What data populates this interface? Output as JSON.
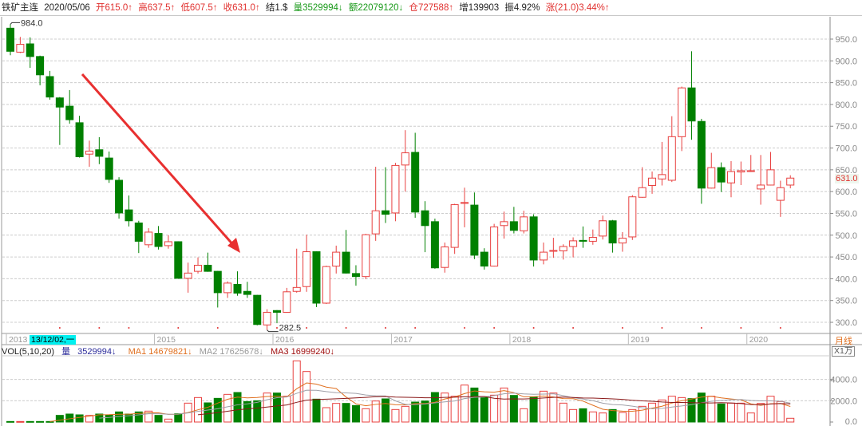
{
  "header": {
    "symbol": "铁矿主连",
    "date": "2020/05/06",
    "open": "开615.0↑",
    "high": "高637.5↑",
    "low": "低607.5↑",
    "close": "收631.0↑",
    "settle": "结1.$",
    "volume": "量3529994↓",
    "amount": "额22079120↓",
    "open_interest": "仓727588↑",
    "oi_change": "增139903",
    "amplitude": "振4.92%",
    "change": "涨(21.0)3.44%↑"
  },
  "volume_header": {
    "indicator": "VOL(5,10,20)",
    "vol_label": "量",
    "vol_value": "3529994↓",
    "ma1": "MA1 14679821↓",
    "ma2": "MA2 17625678↓",
    "ma3": "MA3 16999240↓"
  },
  "cursor_date": "13/12/02,一",
  "period_label": "月线",
  "volume_unit": "X1万",
  "last_price_label": "631.0",
  "colors": {
    "up": "#e8403f",
    "down": "#008000",
    "arrow": "#e83030",
    "ma1": "#e07020",
    "ma2": "#a0a0a8",
    "ma3": "#8b1a1a"
  },
  "chart_data": {
    "type": "candlestick",
    "period": "monthly",
    "first_month": "2013-10",
    "price_axis": {
      "ylim": [
        280,
        990
      ],
      "ticks": [
        "300.0",
        "350.0",
        "400.0",
        "450.0",
        "500.0",
        "550.0",
        "600.0",
        "650.0",
        "700.0",
        "750.0",
        "800.0",
        "850.0",
        "900.0",
        "950.0"
      ],
      "grid": true
    },
    "volume_axis": {
      "unit": "万",
      "ticks": [
        "0.0",
        "2000.0",
        "4000.0"
      ],
      "grid": true
    },
    "year_labels": [
      {
        "label": "2013",
        "index": 0
      },
      {
        "label": "2015",
        "index": 15
      },
      {
        "label": "2016",
        "index": 27
      },
      {
        "label": "2017",
        "index": 39
      },
      {
        "label": "2018",
        "index": 51
      },
      {
        "label": "2019",
        "index": 63
      },
      {
        "label": "2020",
        "index": 75
      }
    ],
    "annotations": {
      "high": "984.0",
      "low": "282.5",
      "high_index": 0,
      "low_index": 26
    },
    "ohlc": [
      [
        975,
        984,
        913,
        922
      ],
      [
        920,
        955,
        918,
        938
      ],
      [
        939,
        954,
        884,
        910
      ],
      [
        910,
        912,
        844,
        868
      ],
      [
        864,
        877,
        811,
        817
      ],
      [
        815,
        817,
        707,
        794
      ],
      [
        796,
        833,
        756,
        765
      ],
      [
        758,
        774,
        678,
        680
      ],
      [
        686,
        717,
        657,
        693
      ],
      [
        696,
        725,
        663,
        681
      ],
      [
        677,
        692,
        620,
        628
      ],
      [
        626,
        633,
        538,
        551
      ],
      [
        558,
        591,
        520,
        533
      ],
      [
        528,
        533,
        459,
        486
      ],
      [
        478,
        516,
        471,
        507
      ],
      [
        504,
        521,
        467,
        474
      ],
      [
        476,
        500,
        469,
        485
      ],
      [
        485,
        486,
        400,
        401
      ],
      [
        401,
        437,
        368,
        413
      ],
      [
        417,
        449,
        412,
        431
      ],
      [
        431,
        460,
        416,
        417
      ],
      [
        417,
        418,
        334,
        368
      ],
      [
        368,
        394,
        356,
        390
      ],
      [
        387,
        417,
        361,
        367
      ],
      [
        371,
        393,
        356,
        364
      ],
      [
        362,
        363,
        293,
        295
      ],
      [
        294,
        330,
        282.5,
        323
      ],
      [
        327,
        328,
        298,
        323
      ],
      [
        323,
        379,
        322,
        370
      ],
      [
        371,
        469,
        368,
        380
      ],
      [
        382,
        501,
        370,
        462
      ],
      [
        462,
        463,
        335,
        344
      ],
      [
        344,
        430,
        342,
        428
      ],
      [
        429,
        476,
        412,
        461
      ],
      [
        461,
        512,
        412,
        413
      ],
      [
        412,
        431,
        384,
        405
      ],
      [
        405,
        503,
        399,
        501
      ],
      [
        503,
        657,
        487,
        556
      ],
      [
        556,
        656,
        528,
        548
      ],
      [
        551,
        666,
        532,
        660
      ],
      [
        661,
        741,
        600,
        689
      ],
      [
        690,
        735,
        540,
        553
      ],
      [
        556,
        578,
        461,
        522
      ],
      [
        531,
        538,
        423,
        425
      ],
      [
        426,
        483,
        414,
        473
      ],
      [
        472,
        572,
        457,
        570
      ],
      [
        573,
        609,
        518,
        575
      ],
      [
        569,
        598,
        445,
        454
      ],
      [
        461,
        470,
        421,
        429
      ],
      [
        429,
        526,
        428,
        519
      ],
      [
        522,
        554,
        492,
        531
      ],
      [
        531,
        565,
        504,
        511
      ],
      [
        510,
        556,
        504,
        542
      ],
      [
        542,
        548,
        428,
        443
      ],
      [
        443,
        483,
        433,
        461
      ],
      [
        463,
        494,
        448,
        465
      ],
      [
        464,
        479,
        444,
        474
      ],
      [
        474,
        495,
        449,
        487
      ],
      [
        488,
        520,
        471,
        486
      ],
      [
        486,
        513,
        478,
        495
      ],
      [
        498,
        545,
        490,
        533
      ],
      [
        533,
        535,
        460,
        482
      ],
      [
        482,
        507,
        462,
        493
      ],
      [
        496,
        592,
        489,
        588
      ],
      [
        587,
        656,
        586,
        609
      ],
      [
        614,
        646,
        595,
        631
      ],
      [
        629,
        714,
        614,
        639
      ],
      [
        626,
        773,
        622,
        726
      ],
      [
        726,
        841,
        693,
        838
      ],
      [
        838,
        922,
        719,
        762
      ],
      [
        761,
        767,
        572,
        608
      ],
      [
        608,
        689,
        607,
        655
      ],
      [
        655,
        667,
        599,
        622
      ],
      [
        620,
        670,
        587,
        646
      ],
      [
        645,
        669,
        615,
        648
      ],
      [
        646,
        684,
        645,
        648
      ],
      [
        606,
        684,
        570,
        615
      ],
      [
        615,
        691,
        614,
        650
      ],
      [
        580,
        625,
        542,
        609
      ],
      [
        615,
        637.5,
        607.5,
        631
      ]
    ],
    "volume_wan": [
      50,
      50,
      50,
      50,
      50,
      625,
      750,
      675,
      625,
      750,
      650,
      950,
      750,
      950,
      1025,
      625,
      275,
      775,
      1775,
      2300,
      1800,
      2225,
      2600,
      2775,
      1925,
      2000,
      2725,
      2725,
      2425,
      5750,
      4750,
      2150,
      1350,
      1750,
      1750,
      1550,
      1250,
      1975,
      2175,
      1175,
      1475,
      1875,
      1975,
      2775,
      2725,
      2425,
      3475,
      3200,
      2375,
      2525,
      3200,
      2500,
      1250,
      2375,
      2900,
      2725,
      1775,
      1175,
      1250,
      950,
      850,
      1175,
      900,
      1175,
      1475,
      1775,
      2075,
      2425,
      2300,
      2200,
      2725,
      2425,
      1700,
      1775,
      1775,
      850,
      1750,
      2425,
      1925,
      353
    ],
    "volume_ma_periods": [
      5,
      10,
      20
    ]
  }
}
